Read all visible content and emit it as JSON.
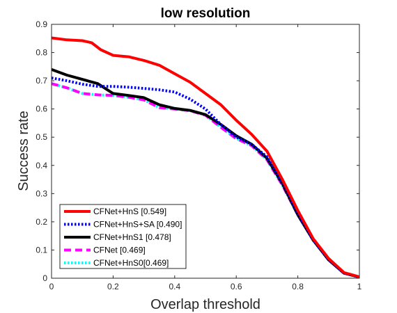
{
  "chart_data": {
    "type": "line",
    "title": "low resolution",
    "xlabel": "Overlap threshold",
    "ylabel": "Success rate",
    "xlim": [
      0,
      1
    ],
    "ylim": [
      0,
      0.9
    ],
    "xticks": [
      "0",
      "0.2",
      "0.4",
      "0.6",
      "0.8",
      "1"
    ],
    "yticks": [
      "0",
      "0.1",
      "0.2",
      "0.3",
      "0.4",
      "0.5",
      "0.6",
      "0.7",
      "0.8",
      "0.9"
    ],
    "grid": false,
    "legend_position": "bottom-left",
    "series": [
      {
        "name": "CFNet+HnS [0.549]",
        "color": "#ff0000",
        "style": "solid",
        "x": [
          0,
          0.05,
          0.1,
          0.13,
          0.16,
          0.2,
          0.25,
          0.3,
          0.35,
          0.4,
          0.45,
          0.5,
          0.55,
          0.6,
          0.65,
          0.7,
          0.75,
          0.8,
          0.85,
          0.9,
          0.95,
          1.0
        ],
        "y": [
          0.852,
          0.845,
          0.842,
          0.835,
          0.81,
          0.79,
          0.785,
          0.772,
          0.755,
          0.725,
          0.695,
          0.655,
          0.615,
          0.56,
          0.51,
          0.45,
          0.35,
          0.24,
          0.14,
          0.07,
          0.02,
          0.005
        ]
      },
      {
        "name": "CFNet+HnS+SA [0.490]",
        "color": "#0000ff",
        "style": "dotted",
        "x": [
          0,
          0.05,
          0.1,
          0.15,
          0.2,
          0.25,
          0.3,
          0.35,
          0.4,
          0.45,
          0.5,
          0.55,
          0.6,
          0.65,
          0.7,
          0.75,
          0.8,
          0.85,
          0.9,
          0.95,
          1.0
        ],
        "y": [
          0.71,
          0.7,
          0.688,
          0.68,
          0.68,
          0.677,
          0.673,
          0.668,
          0.66,
          0.635,
          0.6,
          0.545,
          0.5,
          0.475,
          0.43,
          0.34,
          0.23,
          0.135,
          0.065,
          0.018,
          0.004
        ]
      },
      {
        "name": "CFNet+HnS1 [0.478]",
        "color": "#000000",
        "style": "solid",
        "x": [
          0,
          0.05,
          0.1,
          0.15,
          0.2,
          0.25,
          0.3,
          0.35,
          0.4,
          0.45,
          0.5,
          0.55,
          0.6,
          0.65,
          0.7,
          0.75,
          0.8,
          0.85,
          0.9,
          0.95,
          1.0
        ],
        "y": [
          0.74,
          0.72,
          0.705,
          0.69,
          0.655,
          0.648,
          0.64,
          0.615,
          0.602,
          0.595,
          0.58,
          0.545,
          0.505,
          0.475,
          0.425,
          0.335,
          0.225,
          0.135,
          0.065,
          0.018,
          0.004
        ]
      },
      {
        "name": "CFNet [0.469]",
        "color": "#ff00ff",
        "style": "dashed",
        "x": [
          0,
          0.05,
          0.1,
          0.15,
          0.2,
          0.25,
          0.3,
          0.35,
          0.4,
          0.45,
          0.5,
          0.55,
          0.6,
          0.65,
          0.7,
          0.75,
          0.8,
          0.85,
          0.9,
          0.95,
          1.0
        ],
        "y": [
          0.69,
          0.675,
          0.655,
          0.65,
          0.648,
          0.642,
          0.632,
          0.605,
          0.6,
          0.594,
          0.578,
          0.535,
          0.495,
          0.47,
          0.42,
          0.33,
          0.225,
          0.135,
          0.065,
          0.018,
          0.004
        ]
      },
      {
        "name": "CFNet+HnS0[0.469]",
        "color": "#00ffff",
        "style": "dotted",
        "x": [
          0,
          0.05,
          0.1,
          0.15,
          0.2,
          0.25,
          0.3,
          0.35,
          0.4,
          0.45,
          0.5,
          0.55,
          0.6,
          0.65,
          0.7,
          0.75,
          0.8,
          0.85,
          0.9,
          0.95,
          1.0
        ],
        "y": [
          0.69,
          0.675,
          0.655,
          0.65,
          0.648,
          0.642,
          0.632,
          0.605,
          0.6,
          0.594,
          0.578,
          0.535,
          0.495,
          0.47,
          0.42,
          0.33,
          0.225,
          0.135,
          0.065,
          0.018,
          0.004
        ]
      }
    ]
  }
}
